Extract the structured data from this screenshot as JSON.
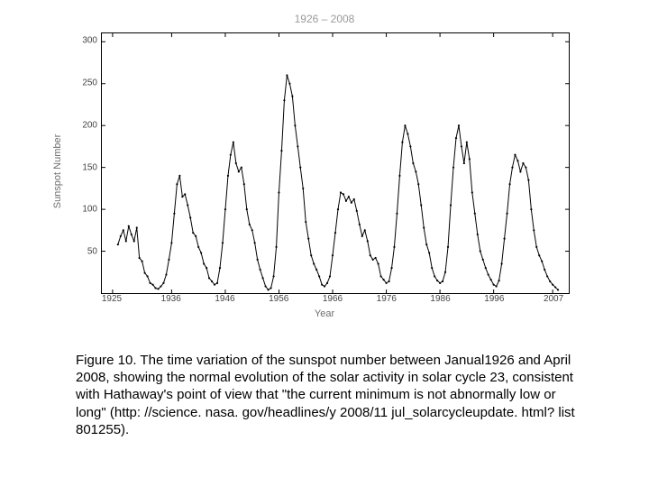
{
  "chart": {
    "type": "line",
    "title": "1926 – 2008",
    "title_color": "#9a9a9a",
    "title_fontsize": 12,
    "xlabel": "Year",
    "ylabel": "Sunspot Number",
    "label_color": "#6d6d6d",
    "label_fontsize": 11,
    "tick_fontsize": 10,
    "tick_color": "#444444",
    "background_color": "#ffffff",
    "border_color": "#000000",
    "line_color": "#000000",
    "line_width": 1.0,
    "marker": "circle",
    "marker_size": 2.2,
    "marker_color": "#000000",
    "xlim": [
      1923,
      2010
    ],
    "ylim": [
      0,
      310
    ],
    "xticks": [
      1925,
      1936,
      1946,
      1956,
      1966,
      1976,
      1986,
      1996,
      2007
    ],
    "yticks": [
      50,
      100,
      150,
      200,
      250,
      300
    ],
    "series": {
      "x": [
        1926.0,
        1926.5,
        1927.0,
        1927.5,
        1928.0,
        1928.5,
        1929.0,
        1929.5,
        1930.0,
        1930.5,
        1931.0,
        1931.5,
        1932.0,
        1932.5,
        1933.0,
        1933.5,
        1934.0,
        1934.5,
        1935.0,
        1935.5,
        1936.0,
        1936.5,
        1937.0,
        1937.5,
        1938.0,
        1938.5,
        1939.0,
        1939.5,
        1940.0,
        1940.5,
        1941.0,
        1941.5,
        1942.0,
        1942.5,
        1943.0,
        1943.5,
        1944.0,
        1944.5,
        1945.0,
        1945.5,
        1946.0,
        1946.5,
        1947.0,
        1947.5,
        1948.0,
        1948.5,
        1949.0,
        1949.5,
        1950.0,
        1950.5,
        1951.0,
        1951.5,
        1952.0,
        1952.5,
        1953.0,
        1953.5,
        1954.0,
        1954.5,
        1955.0,
        1955.5,
        1956.0,
        1956.5,
        1957.0,
        1957.5,
        1958.0,
        1958.5,
        1959.0,
        1959.5,
        1960.0,
        1960.5,
        1961.0,
        1961.5,
        1962.0,
        1962.5,
        1963.0,
        1963.5,
        1964.0,
        1964.5,
        1965.0,
        1965.5,
        1966.0,
        1966.5,
        1967.0,
        1967.5,
        1968.0,
        1968.5,
        1969.0,
        1969.5,
        1970.0,
        1970.5,
        1971.0,
        1971.5,
        1972.0,
        1972.5,
        1973.0,
        1973.5,
        1974.0,
        1974.5,
        1975.0,
        1975.5,
        1976.0,
        1976.5,
        1977.0,
        1977.5,
        1978.0,
        1978.5,
        1979.0,
        1979.5,
        1980.0,
        1980.5,
        1981.0,
        1981.5,
        1982.0,
        1982.5,
        1983.0,
        1983.5,
        1984.0,
        1984.5,
        1985.0,
        1985.5,
        1986.0,
        1986.5,
        1987.0,
        1987.5,
        1988.0,
        1988.5,
        1989.0,
        1989.5,
        1990.0,
        1990.5,
        1991.0,
        1991.5,
        1992.0,
        1992.5,
        1993.0,
        1993.5,
        1994.0,
        1994.5,
        1995.0,
        1995.5,
        1996.0,
        1996.5,
        1997.0,
        1997.5,
        1998.0,
        1998.5,
        1999.0,
        1999.5,
        2000.0,
        2000.5,
        2001.0,
        2001.5,
        2002.0,
        2002.5,
        2003.0,
        2003.5,
        2004.0,
        2004.5,
        2005.0,
        2005.5,
        2006.0,
        2006.5,
        2007.0,
        2007.5,
        2008.0
      ],
      "y": [
        58,
        68,
        75,
        62,
        80,
        70,
        62,
        78,
        42,
        38,
        24,
        20,
        12,
        10,
        6,
        5,
        8,
        12,
        22,
        40,
        60,
        95,
        130,
        140,
        115,
        118,
        105,
        90,
        72,
        68,
        55,
        48,
        35,
        30,
        18,
        14,
        10,
        12,
        30,
        60,
        100,
        140,
        165,
        180,
        155,
        145,
        150,
        130,
        100,
        82,
        75,
        60,
        40,
        28,
        18,
        8,
        4,
        6,
        20,
        55,
        120,
        170,
        230,
        260,
        250,
        235,
        200,
        175,
        150,
        125,
        85,
        65,
        45,
        35,
        28,
        20,
        10,
        8,
        12,
        20,
        45,
        72,
        100,
        120,
        118,
        110,
        115,
        108,
        112,
        98,
        82,
        68,
        75,
        62,
        45,
        40,
        42,
        35,
        20,
        16,
        12,
        14,
        30,
        55,
        95,
        140,
        180,
        200,
        190,
        175,
        155,
        145,
        130,
        105,
        78,
        58,
        48,
        30,
        20,
        15,
        12,
        14,
        25,
        55,
        105,
        150,
        185,
        200,
        175,
        155,
        180,
        160,
        120,
        95,
        70,
        50,
        40,
        30,
        22,
        16,
        10,
        8,
        15,
        35,
        65,
        95,
        130,
        150,
        165,
        158,
        145,
        155,
        150,
        135,
        100,
        75,
        55,
        45,
        38,
        28,
        20,
        14,
        10,
        7,
        4
      ]
    }
  },
  "caption": {
    "text": "Figure 10. The time variation of the sunspot number between Janual1926 and April 2008, showing the normal evolution of the solar activity in solar cycle 23, consistent with Hathaway's point of view that \"the current minimum is not abnormally low or long\" (http: //science. nasa. gov/headlines/y 2008/11 jul_solarcycleupdate. html? list 801255).",
    "fontsize": 15,
    "color": "#000000"
  }
}
